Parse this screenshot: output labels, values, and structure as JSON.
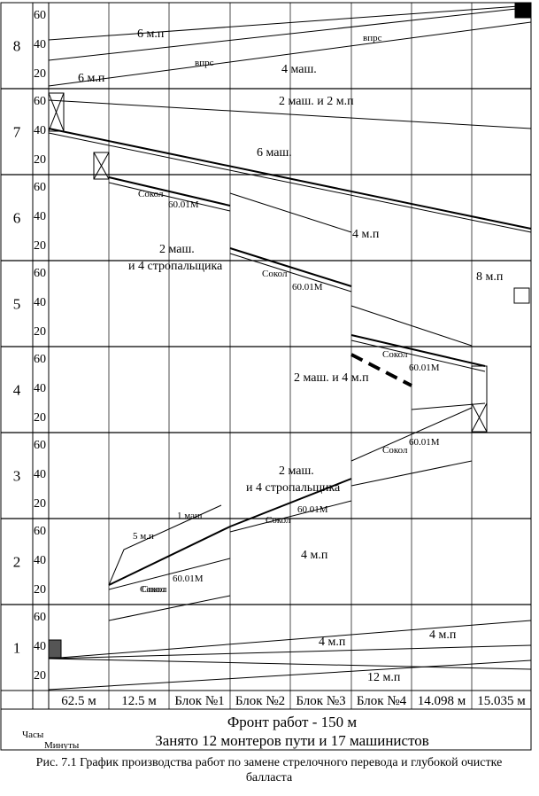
{
  "hours": [
    "8",
    "7",
    "6",
    "5",
    "4",
    "3",
    "2",
    "1"
  ],
  "minute_labels": [
    "60",
    "40",
    "20"
  ],
  "columns": [
    "62.5 м",
    "12.5 м",
    "Блок №1",
    "Блок №2",
    "Блок №3",
    "Блок №4",
    "14.098 м",
    "15.035 м"
  ],
  "axis_labels": {
    "hours": "Часы",
    "minutes": "Минуты"
  },
  "footer": {
    "front": "Фронт работ - 150 м",
    "crew": "Занято 12 монтеров пути и 17 машинистов"
  },
  "caption": "Рис. 7.1 График производства работ по замене стрелочного перевода и глубокой очистке балласта",
  "annotations": [
    "6 м.п",
    "6 м.п",
    "4 маш.",
    "впрс",
    "впрс",
    "2 маш. и 2 м.п",
    "6 маш.",
    "Сокол",
    "60.01М",
    "4 м.п",
    "2 маш.",
    "и 4 стропальщика",
    "Сокол",
    "60.01М",
    "8 м.п",
    "Сокол",
    "60.01М",
    "2 маш. и 4 м.п",
    "Сокол",
    "60.01М",
    "2 маш.",
    "и 4 стропальщика",
    "Сокол",
    "60.01М",
    "1 маш",
    "5 м.п",
    "Сокол",
    "4 м.п",
    "Сокол",
    "60.01М",
    "4 м.п",
    "4 м.п",
    "12 м.п"
  ]
}
